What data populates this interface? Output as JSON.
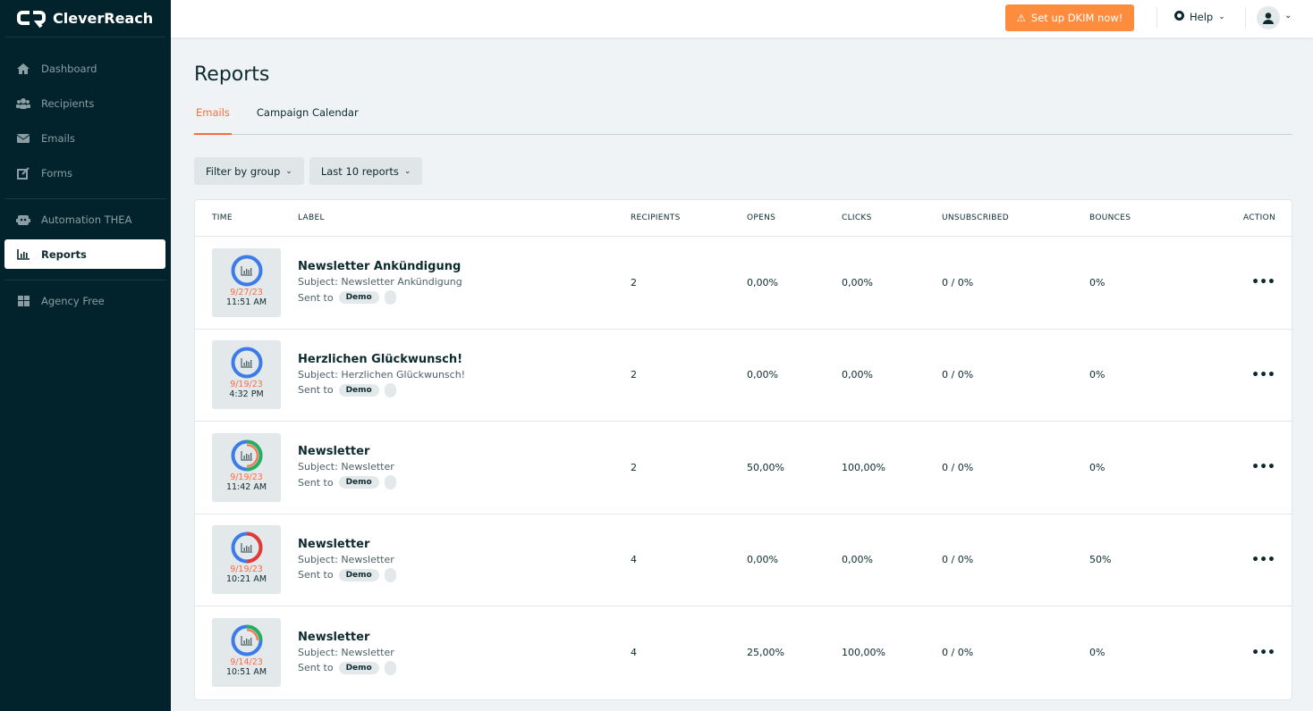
{
  "app": {
    "name": "CleverReach"
  },
  "sidebar": {
    "items": [
      {
        "label": "Dashboard",
        "icon": "home-icon"
      },
      {
        "label": "Recipients",
        "icon": "users-icon"
      },
      {
        "label": "Emails",
        "icon": "envelope-icon"
      },
      {
        "label": "Forms",
        "icon": "edit-icon"
      },
      {
        "label": "Automation THEA",
        "icon": "robot-icon"
      },
      {
        "label": "Reports",
        "icon": "chart-icon",
        "active": true
      },
      {
        "label": "Agency Free",
        "icon": "grid-icon"
      }
    ]
  },
  "topbar": {
    "dkim_label": "Set up DKIM now!",
    "help_label": "Help"
  },
  "page": {
    "title": "Reports",
    "tabs": [
      "Emails",
      "Campaign Calendar"
    ],
    "filters": [
      "Filter by group",
      "Last 10 reports"
    ]
  },
  "table": {
    "headers": [
      "TIME",
      "LABEL",
      "RECIPIENTS",
      "OPENS",
      "CLICKS",
      "UNSUBSCRIBED",
      "BOUNCES",
      "ACTION"
    ],
    "rows": [
      {
        "date": "9/27/23",
        "time": "11:51 AM",
        "label": "Newsletter Ankündigung",
        "subject": "Subject: Newsletter Ankündigung",
        "sent_to": "Sent to",
        "group": "Demo",
        "recipients": "2",
        "opens": "0,00%",
        "clicks": "0,00%",
        "unsubscribed": "0 / 0%",
        "bounces": "0%",
        "ring": {
          "opens": 0,
          "clicks": 0,
          "bounces": 0
        }
      },
      {
        "date": "9/19/23",
        "time": "4:32 PM",
        "label": "Herzlichen Glückwunsch!",
        "subject": "Subject: Herzlichen Glückwunsch!",
        "sent_to": "Sent to",
        "group": "Demo",
        "recipients": "2",
        "opens": "0,00%",
        "clicks": "0,00%",
        "unsubscribed": "0 / 0%",
        "bounces": "0%",
        "ring": {
          "opens": 0,
          "clicks": 0,
          "bounces": 0
        }
      },
      {
        "date": "9/19/23",
        "time": "11:42 AM",
        "label": "Newsletter",
        "subject": "Subject: Newsletter",
        "sent_to": "Sent to",
        "group": "Demo",
        "recipients": "2",
        "opens": "50,00%",
        "clicks": "100,00%",
        "unsubscribed": "0 / 0%",
        "bounces": "0%",
        "ring": {
          "opens": 0.5,
          "clicks": 0.5,
          "bounces": 0
        }
      },
      {
        "date": "9/19/23",
        "time": "10:21 AM",
        "label": "Newsletter",
        "subject": "Subject: Newsletter",
        "sent_to": "Sent to",
        "group": "Demo",
        "recipients": "4",
        "opens": "0,00%",
        "clicks": "0,00%",
        "unsubscribed": "0 / 0%",
        "bounces": "50%",
        "ring": {
          "opens": 0,
          "clicks": 0,
          "bounces": 0.5
        }
      },
      {
        "date": "9/14/23",
        "time": "10:51 AM",
        "label": "Newsletter",
        "subject": "Subject: Newsletter",
        "sent_to": "Sent to",
        "group": "Demo",
        "recipients": "4",
        "opens": "25,00%",
        "clicks": "100,00%",
        "unsubscribed": "0 / 0%",
        "bounces": "0%",
        "ring": {
          "opens": 0.25,
          "clicks": 0.25,
          "bounces": 0
        }
      }
    ]
  },
  "colors": {
    "accent": "#fd6b3e",
    "dkim": "#fd8c3e",
    "sidebar": "#02232b",
    "ring_base": "#3b7ce8",
    "ring_opens": "#27ae60",
    "ring_clicks": "#fd6b3e",
    "ring_bounces": "#e53935"
  }
}
